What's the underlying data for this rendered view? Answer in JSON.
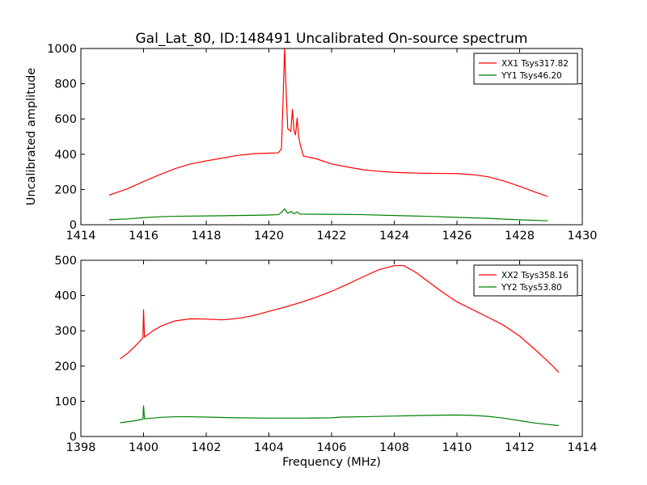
{
  "figure": {
    "title": "Gal_Lat_80, ID:148491 Uncalibrated On-source spectrum",
    "ylabel": "Uncalibrated amplitude",
    "xlabel": "Frequency (MHz)"
  },
  "chart_data": [
    {
      "type": "line",
      "panel": "top",
      "title": "Gal_Lat_80, ID:148491 Uncalibrated On-source spectrum",
      "xlabel": "",
      "ylabel": "Uncalibrated amplitude",
      "xlim": [
        1414,
        1430
      ],
      "ylim": [
        0,
        1000
      ],
      "xticks": [
        1414,
        1416,
        1418,
        1420,
        1422,
        1424,
        1426,
        1428,
        1430
      ],
      "yticks": [
        0,
        200,
        400,
        600,
        800,
        1000
      ],
      "legend_position": "top-right",
      "series": [
        {
          "name": "XX1 Tsys317.82",
          "color": "#ff0000",
          "points": [
            [
              1414.9,
              168
            ],
            [
              1415.5,
              205
            ],
            [
              1416.0,
              245
            ],
            [
              1416.5,
              283
            ],
            [
              1417.0,
              318
            ],
            [
              1417.5,
              345
            ],
            [
              1418.0,
              362
            ],
            [
              1418.5,
              378
            ],
            [
              1419.0,
              393
            ],
            [
              1419.5,
              403
            ],
            [
              1420.0,
              406
            ],
            [
              1420.3,
              408
            ],
            [
              1420.4,
              430
            ],
            [
              1420.45,
              700
            ],
            [
              1420.5,
              1000
            ],
            [
              1420.55,
              760
            ],
            [
              1420.6,
              545
            ],
            [
              1420.7,
              530
            ],
            [
              1420.75,
              655
            ],
            [
              1420.8,
              535
            ],
            [
              1420.85,
              510
            ],
            [
              1420.9,
              605
            ],
            [
              1420.95,
              500
            ],
            [
              1421.0,
              455
            ],
            [
              1421.1,
              390
            ],
            [
              1421.5,
              375
            ],
            [
              1422.0,
              345
            ],
            [
              1422.5,
              328
            ],
            [
              1423.0,
              312
            ],
            [
              1423.5,
              303
            ],
            [
              1424.0,
              297
            ],
            [
              1424.5,
              294
            ],
            [
              1425.0,
              292
            ],
            [
              1425.5,
              291
            ],
            [
              1426.0,
              290
            ],
            [
              1426.5,
              284
            ],
            [
              1427.0,
              272
            ],
            [
              1427.5,
              248
            ],
            [
              1428.0,
              218
            ],
            [
              1428.5,
              185
            ],
            [
              1428.9,
              160
            ]
          ]
        },
        {
          "name": "YY1 Tsys46.20",
          "color": "#008000",
          "points": [
            [
              1414.9,
              28
            ],
            [
              1415.5,
              33
            ],
            [
              1416.0,
              40
            ],
            [
              1416.5,
              45
            ],
            [
              1417.0,
              48
            ],
            [
              1418.0,
              50
            ],
            [
              1419.0,
              52
            ],
            [
              1420.0,
              55
            ],
            [
              1420.3,
              57
            ],
            [
              1420.4,
              70
            ],
            [
              1420.5,
              90
            ],
            [
              1420.6,
              65
            ],
            [
              1420.7,
              75
            ],
            [
              1420.8,
              62
            ],
            [
              1420.9,
              72
            ],
            [
              1421.0,
              60
            ],
            [
              1422.0,
              59
            ],
            [
              1423.0,
              57
            ],
            [
              1424.0,
              52
            ],
            [
              1425.0,
              48
            ],
            [
              1426.0,
              42
            ],
            [
              1427.0,
              36
            ],
            [
              1428.0,
              28
            ],
            [
              1428.9,
              22
            ]
          ]
        }
      ]
    },
    {
      "type": "line",
      "panel": "bottom",
      "title": "",
      "xlabel": "Frequency (MHz)",
      "ylabel": "",
      "xlim": [
        1398,
        1414
      ],
      "ylim": [
        0,
        500
      ],
      "xticks": [
        1398,
        1400,
        1402,
        1404,
        1406,
        1408,
        1410,
        1412,
        1414
      ],
      "yticks": [
        0,
        100,
        200,
        300,
        400,
        500
      ],
      "legend_position": "top-right",
      "series": [
        {
          "name": "XX2 Tsys358.16",
          "color": "#ff0000",
          "points": [
            [
              1399.25,
              220
            ],
            [
              1399.5,
              237
            ],
            [
              1399.75,
              258
            ],
            [
              1399.98,
              280
            ],
            [
              1400.0,
              360
            ],
            [
              1400.03,
              282
            ],
            [
              1400.3,
              300
            ],
            [
              1400.6,
              315
            ],
            [
              1401.0,
              328
            ],
            [
              1401.5,
              334
            ],
            [
              1402.0,
              333
            ],
            [
              1402.5,
              331
            ],
            [
              1403.0,
              335
            ],
            [
              1403.5,
              343
            ],
            [
              1404.0,
              355
            ],
            [
              1404.5,
              367
            ],
            [
              1405.0,
              380
            ],
            [
              1405.5,
              395
            ],
            [
              1406.0,
              412
            ],
            [
              1406.5,
              432
            ],
            [
              1407.0,
              453
            ],
            [
              1407.5,
              473
            ],
            [
              1408.0,
              485
            ],
            [
              1408.3,
              485
            ],
            [
              1408.7,
              465
            ],
            [
              1409.0,
              445
            ],
            [
              1409.5,
              412
            ],
            [
              1410.0,
              382
            ],
            [
              1410.5,
              360
            ],
            [
              1411.0,
              338
            ],
            [
              1411.5,
              315
            ],
            [
              1412.0,
              285
            ],
            [
              1412.5,
              246
            ],
            [
              1413.0,
              205
            ],
            [
              1413.25,
              182
            ]
          ]
        },
        {
          "name": "YY2 Tsys53.80",
          "color": "#008000",
          "points": [
            [
              1399.25,
              39
            ],
            [
              1399.6,
              43
            ],
            [
              1399.98,
              49
            ],
            [
              1400.0,
              87
            ],
            [
              1400.03,
              50
            ],
            [
              1400.5,
              54
            ],
            [
              1401.0,
              56
            ],
            [
              1401.5,
              56
            ],
            [
              1402.0,
              55
            ],
            [
              1403.0,
              53
            ],
            [
              1404.0,
              52
            ],
            [
              1405.0,
              52
            ],
            [
              1406.0,
              53
            ],
            [
              1406.3,
              55
            ],
            [
              1407.0,
              56
            ],
            [
              1408.0,
              58
            ],
            [
              1409.0,
              60
            ],
            [
              1410.0,
              61
            ],
            [
              1410.5,
              60
            ],
            [
              1411.0,
              57
            ],
            [
              1411.5,
              52
            ],
            [
              1412.0,
              45
            ],
            [
              1412.5,
              38
            ],
            [
              1413.25,
              31
            ]
          ]
        }
      ]
    }
  ]
}
